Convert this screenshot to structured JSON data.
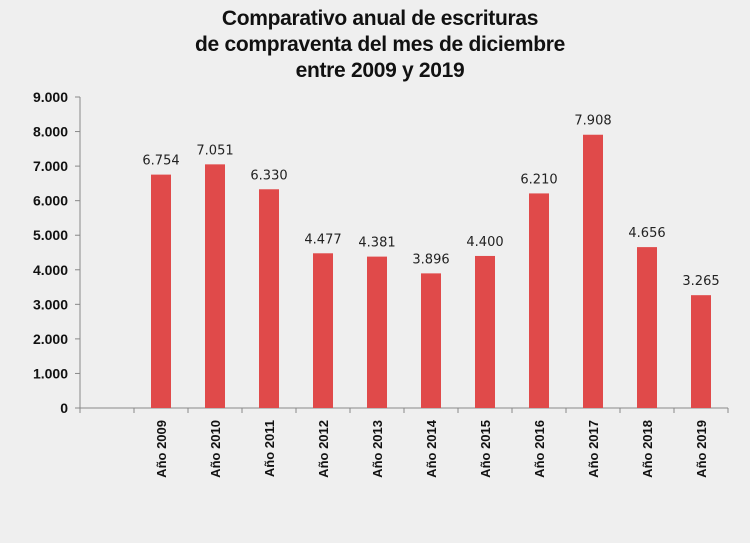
{
  "chart_data": {
    "type": "bar",
    "title_lines": [
      "Comparativo anual de escrituras",
      "de compraventa del mes de diciembre",
      "entre 2009 y 2019"
    ],
    "categories": [
      "",
      "Año 2009",
      "Año 2010",
      "Año 2011",
      "Año 2012",
      "Año 2013",
      "Año 2014",
      "Año 2015",
      "Año 2016",
      "Año 2017",
      "Año 2018",
      "Año 2019"
    ],
    "values": [
      null,
      6754,
      7051,
      6330,
      4477,
      4381,
      3896,
      4400,
      6210,
      7908,
      4656,
      3265
    ],
    "data_labels": [
      "",
      "6.754",
      "7.051",
      "6.330",
      "4.477",
      "4.381",
      "3.896",
      "4.400",
      "6.210",
      "7.908",
      "4.656",
      "3.265"
    ],
    "yticks": [
      0,
      1000,
      2000,
      3000,
      4000,
      5000,
      6000,
      7000,
      8000,
      9000
    ],
    "ytick_labels": [
      "0",
      "1.000",
      "2.000",
      "3.000",
      "4.000",
      "5.000",
      "6.000",
      "7.000",
      "8.000",
      "9.000"
    ],
    "ylim": [
      0,
      9000
    ],
    "xlabel": "",
    "ylabel": "",
    "grid": false,
    "legend": "none",
    "bar_color": "#e04a4a"
  }
}
